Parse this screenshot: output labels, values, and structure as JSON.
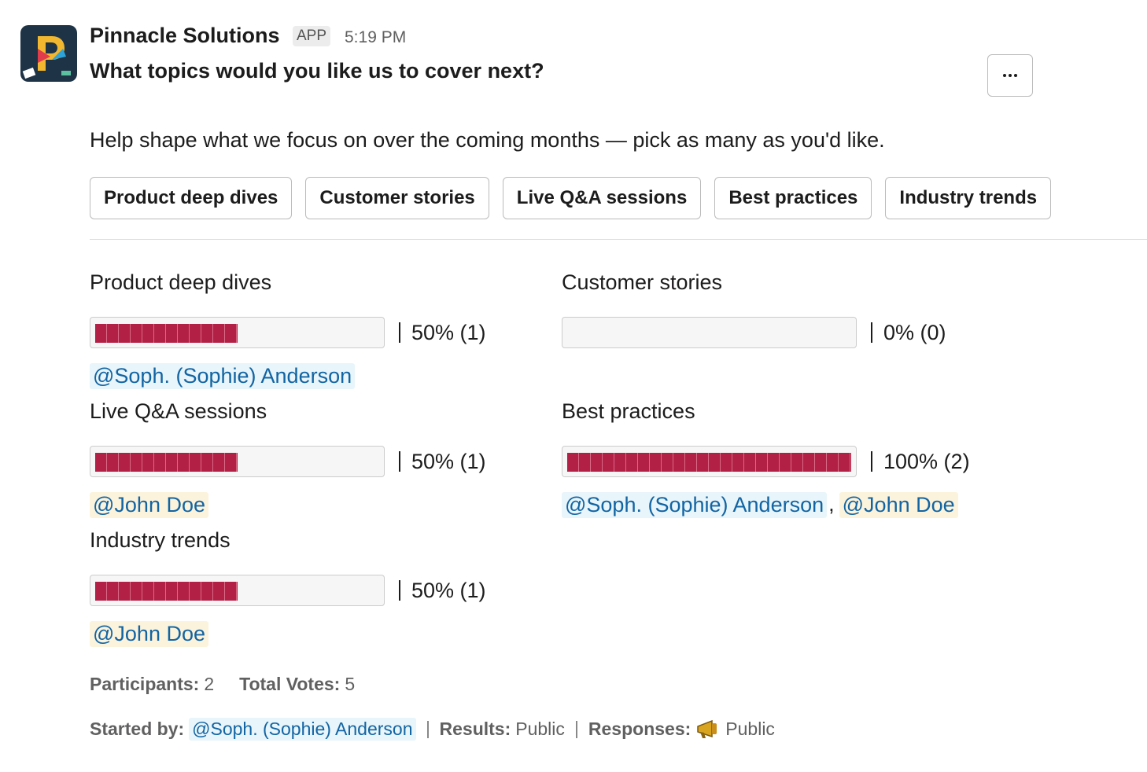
{
  "message": {
    "sender": "Pinnacle Solutions",
    "badge": "APP",
    "time": "5:19 PM",
    "question": "What topics would you like us to cover next?",
    "description": "Help shape what we focus on over the coming months — pick as many as you'd like.",
    "buttons": [
      "Product deep dives",
      "Customer stories",
      "Live Q&A sessions",
      "Best practices",
      "Industry trends"
    ],
    "bar_color": "#b22045",
    "options": [
      {
        "label": "Product deep dives",
        "percent": 50,
        "result": "50% (1)",
        "voters": [
          {
            "name": "@Soph. (Sophie) Anderson",
            "bg": "#e8f5fa"
          }
        ]
      },
      {
        "label": "Customer stories",
        "percent": 0,
        "result": "0% (0)",
        "voters": []
      },
      {
        "label": "Live Q&A sessions",
        "percent": 50,
        "result": "50% (1)",
        "voters": [
          {
            "name": "@John Doe",
            "bg": "#fcf3dc"
          }
        ]
      },
      {
        "label": "Best practices",
        "percent": 100,
        "result": "100% (2)",
        "voters": [
          {
            "name": "@Soph. (Sophie) Anderson",
            "bg": "#e8f5fa"
          },
          {
            "name": "@John Doe",
            "bg": "#fcf3dc"
          }
        ]
      },
      {
        "label": "Industry trends",
        "percent": 50,
        "result": "50% (1)",
        "voters": [
          {
            "name": "@John Doe",
            "bg": "#fcf3dc"
          }
        ]
      }
    ],
    "voter_separator": ",",
    "stats": [
      {
        "label": "Participants:",
        "value": "2"
      },
      {
        "label": "Total Votes:",
        "value": "5"
      }
    ],
    "footer": {
      "started_label": "Started by:",
      "started_by": "@Soph. (Sophie) Anderson",
      "results_label": "Results:",
      "results": "Public",
      "responses_label": "Responses:",
      "responses": "Public"
    }
  }
}
